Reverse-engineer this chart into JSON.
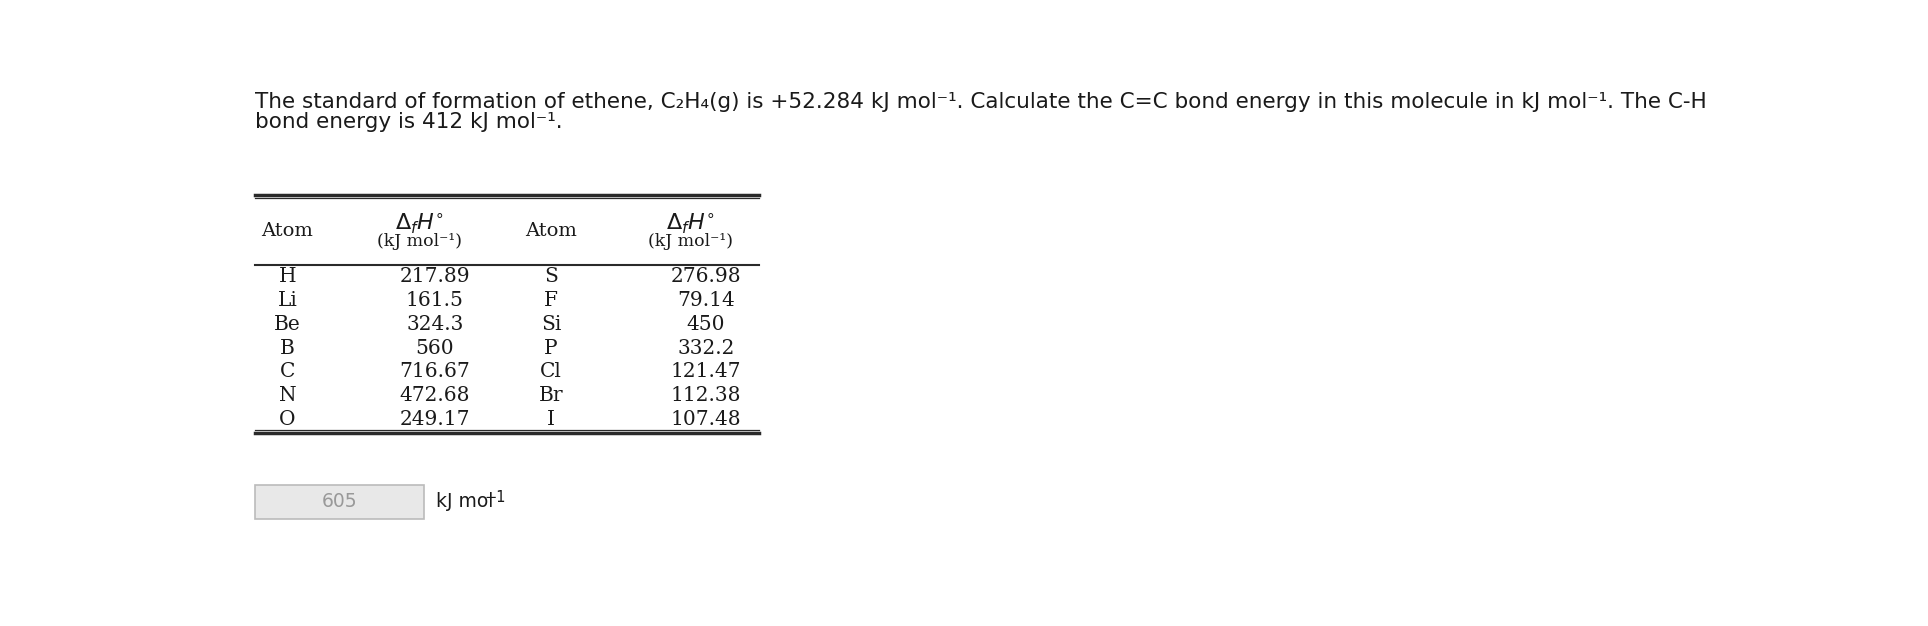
{
  "title_line1": "The standard of formation of ethene, C",
  "title_sub1": "2",
  "title_mid1": "H",
  "title_sub2": "4",
  "title_end1": "(g) is +52.284 kJ mol",
  "title_sup1": "−1",
  "title_end2": ". Calculate the C=C bond energy in this molecule in kJ mol",
  "title_sup2": "−1",
  "title_end3": ". The C-H",
  "title_line2": "bond energy is 412 kJ mol",
  "title_sup3": "−1",
  "title_end4": ".",
  "atoms_left": [
    "H",
    "Li",
    "Be",
    "B",
    "C",
    "N",
    "O"
  ],
  "values_left": [
    "217.89",
    "161.5",
    "324.3",
    "560",
    "716.67",
    "472.68",
    "249.17"
  ],
  "atoms_right": [
    "S",
    "F",
    "Si",
    "P",
    "Cl",
    "Br",
    "I"
  ],
  "values_right": [
    "276.98",
    "79.14",
    "450",
    "332.2",
    "121.47",
    "112.38",
    "107.48"
  ],
  "answer": "605",
  "answer_unit": "kJ mol",
  "answer_unit_sup": "−1",
  "bg_color": "#ffffff",
  "text_color": "#1a1a1a",
  "table_line_color": "#2a2a2a",
  "answer_box_color": "#e8e8e8",
  "answer_text_color": "#999999",
  "font_size_title": 15.5,
  "font_size_table": 14.5,
  "font_size_header_main": 14.0,
  "font_size_header_sub": 12.5,
  "font_size_answer": 13.5
}
